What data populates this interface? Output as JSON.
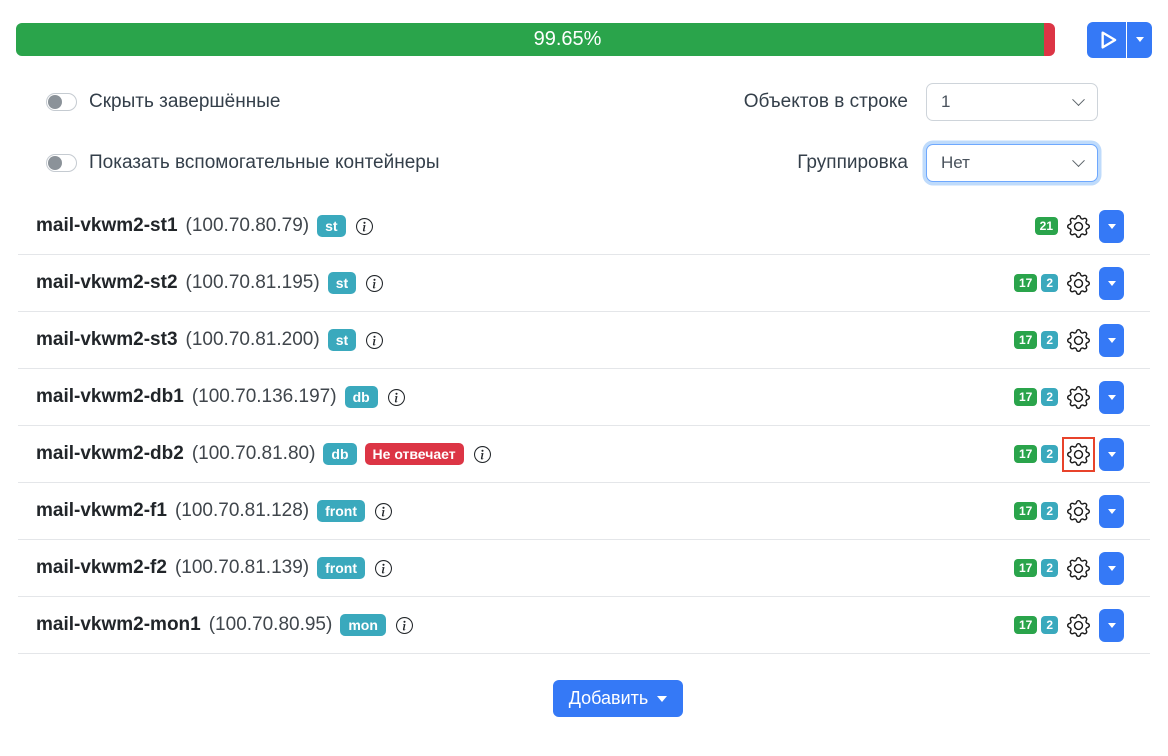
{
  "progress": {
    "label": "99.65%"
  },
  "filters": {
    "hide_completed_label": "Скрыть завершённые",
    "hide_completed_on": false,
    "show_auxiliary_label": "Показать вспомогательные контейнеры",
    "show_auxiliary_on": false,
    "objects_per_row_label": "Объектов в строке",
    "objects_per_row_value": "1",
    "grouping_label": "Группировка",
    "grouping_value": "Нет"
  },
  "servers": [
    {
      "name": "mail-vkwm2-st1",
      "ip": "(100.70.80.79)",
      "role": "st",
      "status": "",
      "counts": [
        {
          "value": "21",
          "color": "green"
        }
      ],
      "gear_highlighted": false
    },
    {
      "name": "mail-vkwm2-st2",
      "ip": "(100.70.81.195)",
      "role": "st",
      "status": "",
      "counts": [
        {
          "value": "17",
          "color": "green"
        },
        {
          "value": "2",
          "color": "teal"
        }
      ],
      "gear_highlighted": false
    },
    {
      "name": "mail-vkwm2-st3",
      "ip": "(100.70.81.200)",
      "role": "st",
      "status": "",
      "counts": [
        {
          "value": "17",
          "color": "green"
        },
        {
          "value": "2",
          "color": "teal"
        }
      ],
      "gear_highlighted": false
    },
    {
      "name": "mail-vkwm2-db1",
      "ip": "(100.70.136.197)",
      "role": "db",
      "status": "",
      "counts": [
        {
          "value": "17",
          "color": "green"
        },
        {
          "value": "2",
          "color": "teal"
        }
      ],
      "gear_highlighted": false
    },
    {
      "name": "mail-vkwm2-db2",
      "ip": "(100.70.81.80)",
      "role": "db",
      "status": "Не отвечает",
      "counts": [
        {
          "value": "17",
          "color": "green"
        },
        {
          "value": "2",
          "color": "teal"
        }
      ],
      "gear_highlighted": true
    },
    {
      "name": "mail-vkwm2-f1",
      "ip": "(100.70.81.128)",
      "role": "front",
      "status": "",
      "counts": [
        {
          "value": "17",
          "color": "green"
        },
        {
          "value": "2",
          "color": "teal"
        }
      ],
      "gear_highlighted": false
    },
    {
      "name": "mail-vkwm2-f2",
      "ip": "(100.70.81.139)",
      "role": "front",
      "status": "",
      "counts": [
        {
          "value": "17",
          "color": "green"
        },
        {
          "value": "2",
          "color": "teal"
        }
      ],
      "gear_highlighted": false
    },
    {
      "name": "mail-vkwm2-mon1",
      "ip": "(100.70.80.95)",
      "role": "mon",
      "status": "",
      "counts": [
        {
          "value": "17",
          "color": "green"
        },
        {
          "value": "2",
          "color": "teal"
        }
      ],
      "gear_highlighted": false
    }
  ],
  "footer": {
    "add_button_label": "Добавить"
  },
  "colors": {
    "green": "#2aa44b",
    "teal": "#3aa9bd",
    "red": "#dc3545",
    "blue": "#3579f6",
    "highlight_box": "#e8432b"
  }
}
